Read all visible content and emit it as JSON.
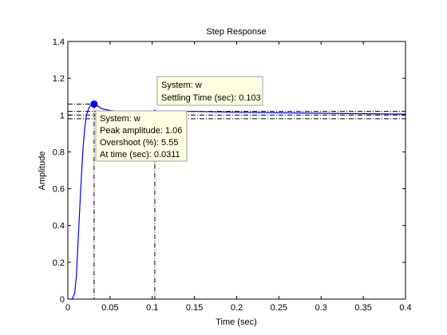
{
  "chart_data": {
    "type": "line",
    "title": "Step Response",
    "xlabel": "Time (sec)",
    "ylabel": "Amplitude",
    "xlim": [
      0,
      0.4
    ],
    "ylim": [
      0,
      1.4
    ],
    "xticks": [
      "0",
      "0.05",
      "0.1",
      "0.15",
      "0.2",
      "0.25",
      "0.3",
      "0.35",
      "0.4"
    ],
    "yticks": [
      "0",
      "0.2",
      "0.4",
      "0.6",
      "0.8",
      "1",
      "1.2",
      "1.4"
    ],
    "grid": false,
    "line_color": "#0000ff",
    "series": [
      {
        "x": [
          0,
          0.005,
          0.008,
          0.01,
          0.012,
          0.015,
          0.018,
          0.02,
          0.022,
          0.025,
          0.028,
          0.0311,
          0.035,
          0.04,
          0.05,
          0.06,
          0.08,
          0.1,
          0.12,
          0.15,
          0.2,
          0.3,
          0.4
        ],
        "y": [
          0,
          0.0,
          0.03,
          0.12,
          0.3,
          0.58,
          0.82,
          0.93,
          1.0,
          1.04,
          1.055,
          1.06,
          1.05,
          1.035,
          1.025,
          1.02,
          1.02,
          1.02,
          1.02,
          1.02,
          1.015,
          1.01,
          1.005
        ]
      }
    ],
    "reference_lines": {
      "final_value": 1.0,
      "settling_band": [
        0.98,
        1.02
      ],
      "peak_marker": {
        "x": 0.0311,
        "y": 1.06
      },
      "settling_marker": {
        "x": 0.103
      }
    },
    "annotations": [
      {
        "name": "peak-datatip",
        "lines": [
          "System: w",
          "Peak amplitude: 1.06",
          "Overshoot (%): 5.55",
          "At time (sec): 0.0311"
        ]
      },
      {
        "name": "settling-datatip",
        "lines": [
          "System: w",
          "Settling Time (sec): 0.103"
        ]
      }
    ]
  }
}
